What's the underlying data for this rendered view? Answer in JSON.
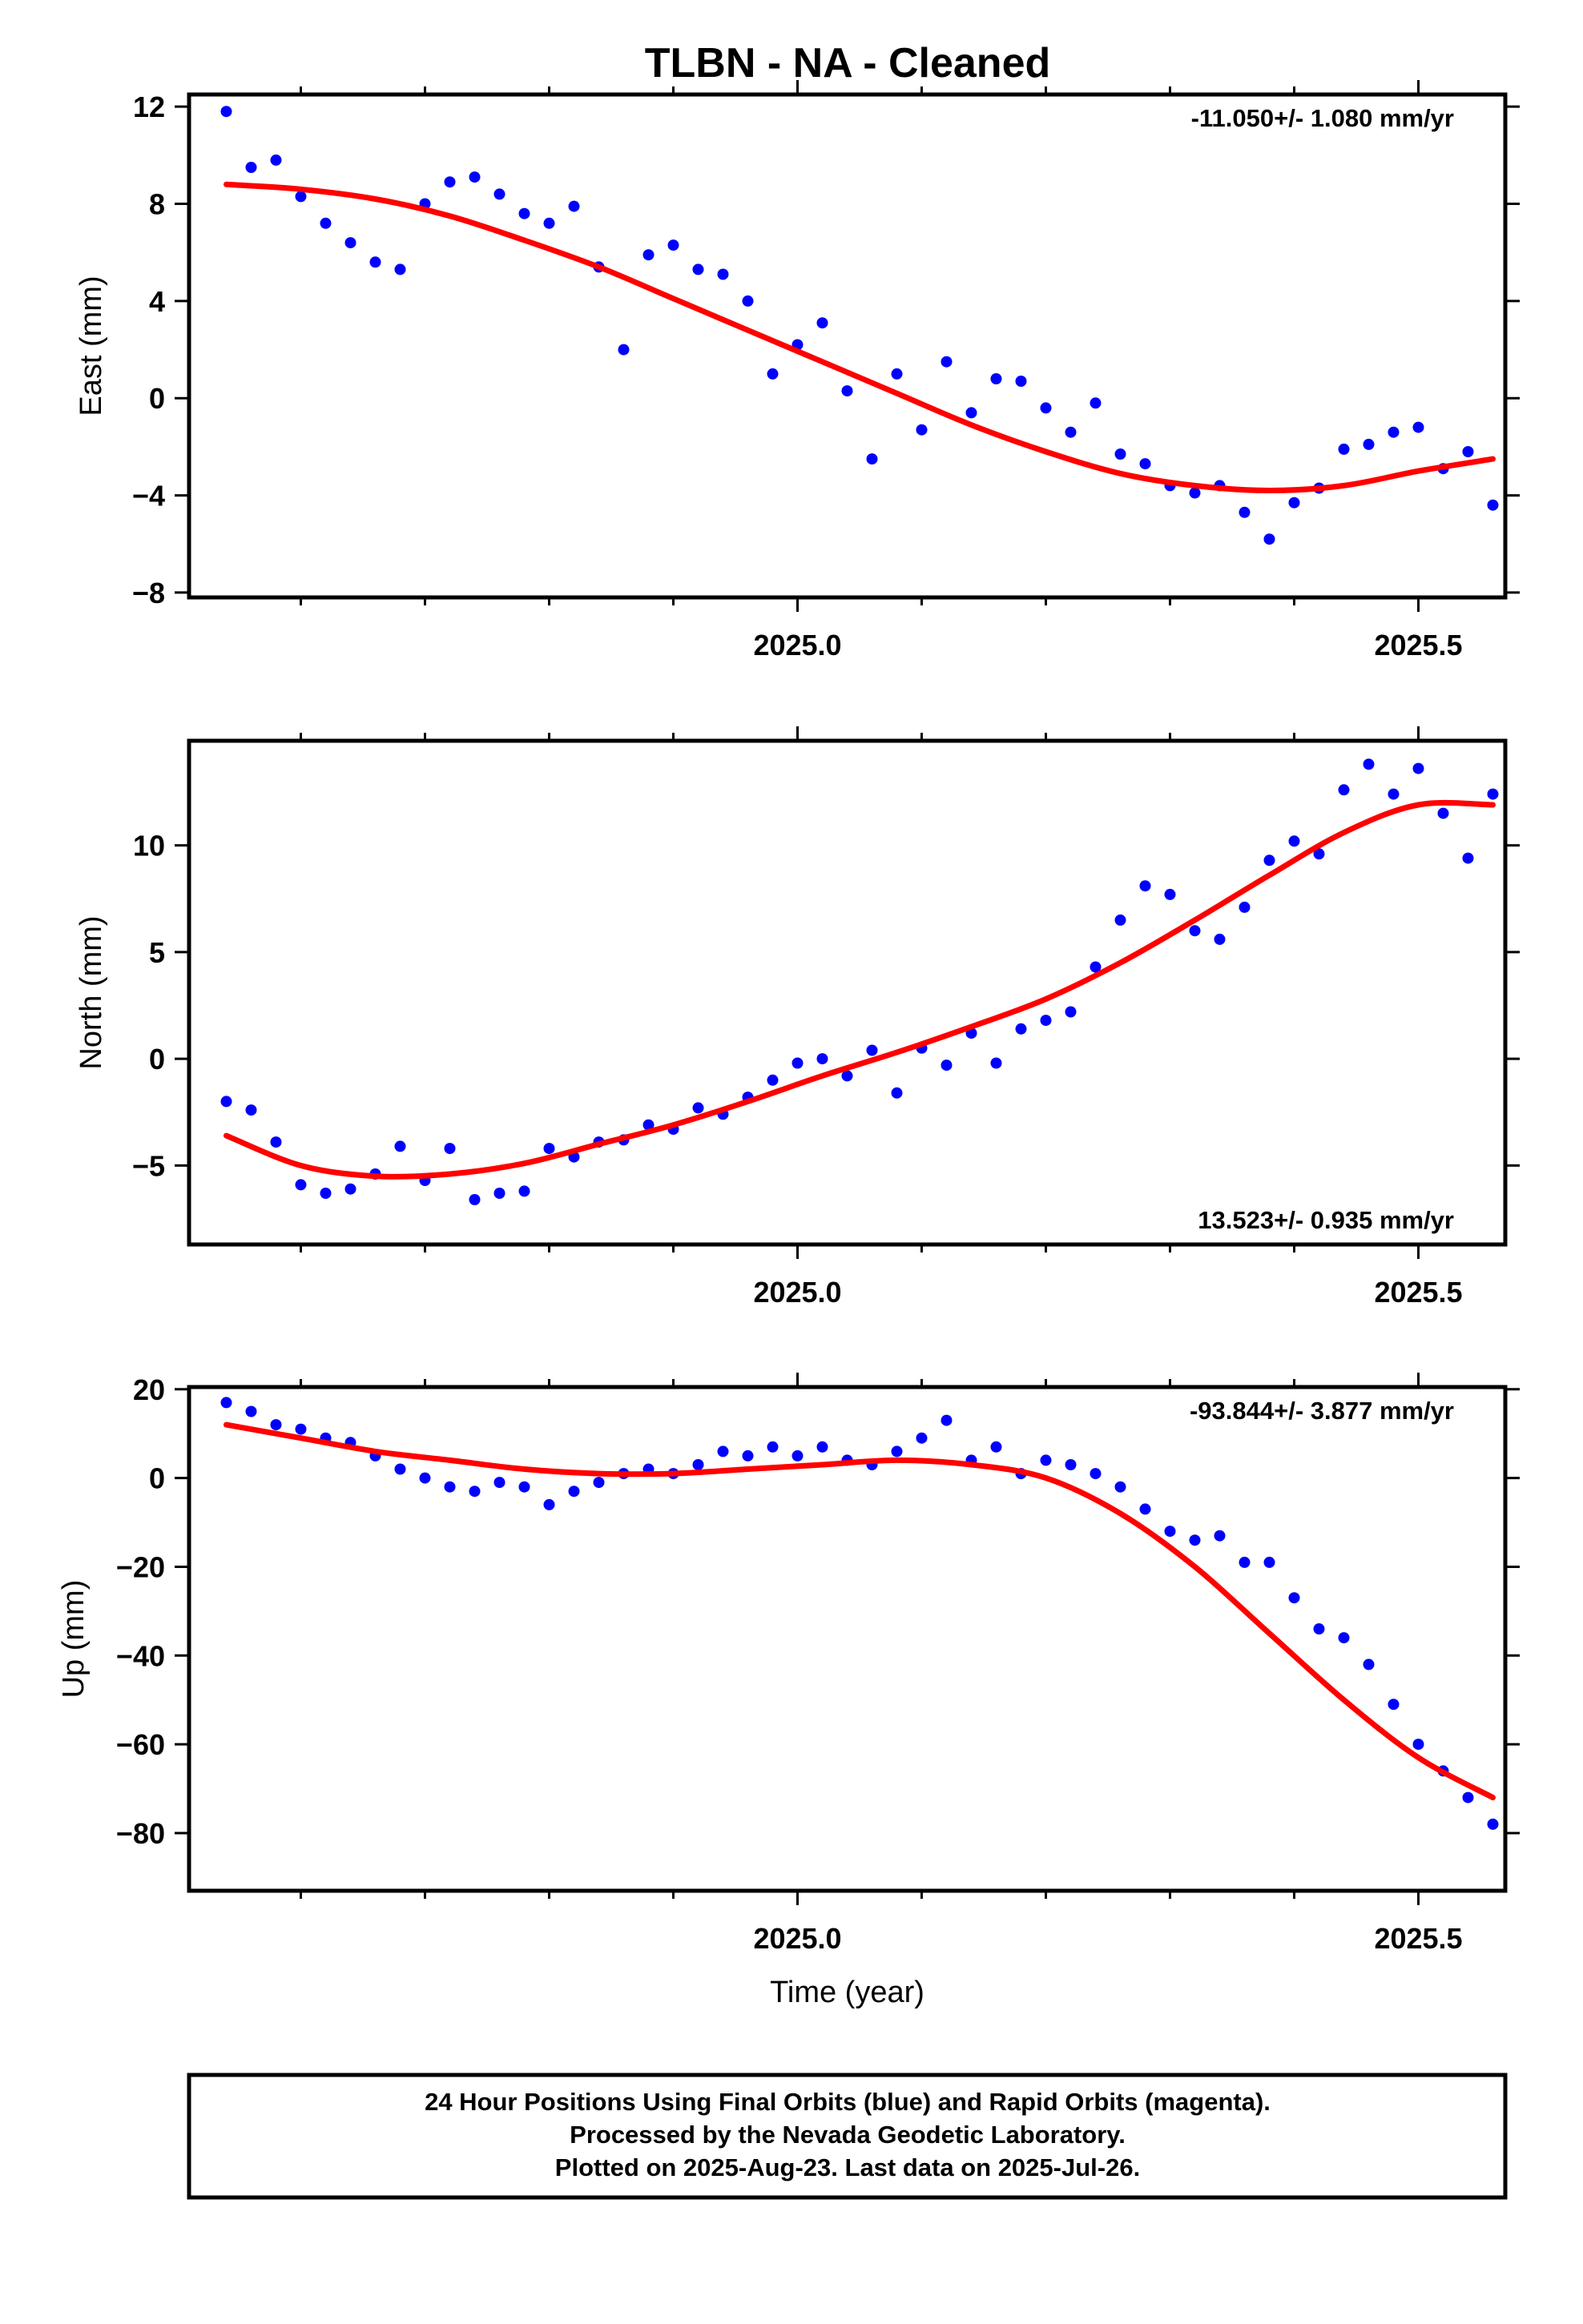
{
  "title": "TLBN  - NA - Cleaned",
  "footer": {
    "lines": [
      "24 Hour Positions Using Final Orbits (blue) and Rapid Orbits (magenta).",
      "Processed by the Nevada Geodetic Laboratory.",
      "Plotted on 2025-Aug-23. Last data on 2025-Jul-26."
    ]
  },
  "colors": {
    "points": "#0000ff",
    "fit": "#ff0000",
    "frame": "#000000"
  },
  "chart_data": [
    {
      "type": "scatter",
      "ylabel": "East (mm)",
      "xlabel": "",
      "xlim": [
        2024.51,
        2025.57
      ],
      "ylim": [
        -8.2,
        12.5
      ],
      "xticks": [
        2025.0,
        2025.5
      ],
      "xticklabels": [
        "2025.0",
        "2025.5"
      ],
      "yticks": [
        -8,
        -4,
        0,
        4,
        8,
        12
      ],
      "yticklabels": [
        "−8",
        "−4",
        "0",
        "4",
        "8",
        "12"
      ],
      "rate_text": "-11.050+/- 1.080 mm/yr",
      "rate_position": "top-right",
      "series": [
        {
          "kind": "points",
          "x": [
            2024.54,
            2024.56,
            2024.58,
            2024.6,
            2024.62,
            2024.64,
            2024.66,
            2024.68,
            2024.7,
            2024.72,
            2024.74,
            2024.76,
            2024.78,
            2024.8,
            2024.82,
            2024.84,
            2024.86,
            2024.88,
            2024.9,
            2024.92,
            2024.94,
            2024.96,
            2024.98,
            2025.0,
            2025.02,
            2025.04,
            2025.06,
            2025.08,
            2025.1,
            2025.12,
            2025.14,
            2025.16,
            2025.18,
            2025.2,
            2025.22,
            2025.24,
            2025.26,
            2025.28,
            2025.3,
            2025.32,
            2025.34,
            2025.36,
            2025.38,
            2025.4,
            2025.42,
            2025.44,
            2025.46,
            2025.48,
            2025.5,
            2025.52,
            2025.54,
            2025.56
          ],
          "y": [
            11.8,
            9.5,
            9.8,
            8.3,
            7.2,
            6.4,
            5.6,
            5.3,
            8.0,
            8.9,
            9.1,
            8.4,
            7.6,
            7.2,
            7.9,
            5.4,
            2.0,
            5.9,
            6.3,
            5.3,
            5.1,
            4.0,
            1.0,
            2.2,
            3.1,
            0.3,
            -2.5,
            1.0,
            -1.3,
            1.5,
            -0.6,
            0.8,
            0.7,
            -0.4,
            -1.4,
            -0.2,
            -2.3,
            -2.7,
            -3.6,
            -3.9,
            -3.6,
            -4.7,
            -5.8,
            -4.3,
            -3.7,
            -2.1,
            -1.9,
            -1.4,
            -1.2,
            -2.9,
            -2.2,
            -4.4
          ]
        },
        {
          "kind": "fit",
          "x": [
            2024.54,
            2024.6,
            2024.66,
            2024.72,
            2024.78,
            2024.84,
            2024.9,
            2024.96,
            2025.02,
            2025.08,
            2025.14,
            2025.2,
            2025.26,
            2025.32,
            2025.38,
            2025.44,
            2025.5,
            2025.56
          ],
          "y": [
            8.8,
            8.6,
            8.2,
            7.5,
            6.5,
            5.4,
            4.1,
            2.8,
            1.5,
            0.2,
            -1.1,
            -2.2,
            -3.1,
            -3.6,
            -3.8,
            -3.6,
            -3.0,
            -2.5
          ]
        }
      ]
    },
    {
      "type": "scatter",
      "ylabel": "North (mm)",
      "xlabel": "",
      "xlim": [
        2024.51,
        2025.57
      ],
      "ylim": [
        -8.7,
        14.9
      ],
      "xticks": [
        2025.0,
        2025.5
      ],
      "xticklabels": [
        "2025.0",
        "2025.5"
      ],
      "yticks": [
        -5,
        0,
        5,
        10
      ],
      "yticklabels": [
        "−5",
        "0",
        "5",
        "10"
      ],
      "rate_text": "13.523+/- 0.935 mm/yr",
      "rate_position": "bottom-right",
      "series": [
        {
          "kind": "points",
          "x": [
            2024.54,
            2024.56,
            2024.58,
            2024.6,
            2024.62,
            2024.64,
            2024.66,
            2024.68,
            2024.7,
            2024.72,
            2024.74,
            2024.76,
            2024.78,
            2024.8,
            2024.82,
            2024.84,
            2024.86,
            2024.88,
            2024.9,
            2024.92,
            2024.94,
            2024.96,
            2024.98,
            2025.0,
            2025.02,
            2025.04,
            2025.06,
            2025.08,
            2025.1,
            2025.12,
            2025.14,
            2025.16,
            2025.18,
            2025.2,
            2025.22,
            2025.24,
            2025.26,
            2025.28,
            2025.3,
            2025.32,
            2025.34,
            2025.36,
            2025.38,
            2025.4,
            2025.42,
            2025.44,
            2025.46,
            2025.48,
            2025.5,
            2025.52,
            2025.54,
            2025.56
          ],
          "y": [
            -2.0,
            -2.4,
            -3.9,
            -5.9,
            -6.3,
            -6.1,
            -5.4,
            -4.1,
            -5.7,
            -4.2,
            -6.6,
            -6.3,
            -6.2,
            -4.2,
            -4.6,
            -3.9,
            -3.8,
            -3.1,
            -3.3,
            -2.3,
            -2.6,
            -1.8,
            -1.0,
            -0.2,
            0.0,
            -0.8,
            0.4,
            -1.6,
            0.5,
            -0.3,
            1.2,
            -0.2,
            1.4,
            1.8,
            2.2,
            4.3,
            6.5,
            8.1,
            7.7,
            6.0,
            5.6,
            7.1,
            9.3,
            10.2,
            9.6,
            12.6,
            13.8,
            12.4,
            13.6,
            11.5,
            9.4,
            12.4
          ]
        },
        {
          "kind": "fit",
          "x": [
            2024.54,
            2024.6,
            2024.66,
            2024.72,
            2024.78,
            2024.84,
            2024.9,
            2024.96,
            2025.02,
            2025.08,
            2025.14,
            2025.2,
            2025.26,
            2025.32,
            2025.38,
            2025.44,
            2025.5,
            2025.56
          ],
          "y": [
            -3.6,
            -5.0,
            -5.5,
            -5.4,
            -4.9,
            -4.0,
            -3.1,
            -2.0,
            -0.8,
            0.3,
            1.5,
            2.8,
            4.5,
            6.5,
            8.6,
            10.6,
            11.9,
            11.9
          ]
        }
      ]
    },
    {
      "type": "scatter",
      "ylabel": "Up (mm)",
      "xlabel": "Time (year)",
      "xlim": [
        2024.51,
        2025.57
      ],
      "ylim": [
        -93.0,
        20.5
      ],
      "xticks": [
        2025.0,
        2025.5
      ],
      "xticklabels": [
        "2025.0",
        "2025.5"
      ],
      "yticks": [
        -80,
        -60,
        -40,
        -20,
        0,
        20
      ],
      "yticklabels": [
        "−80",
        "−60",
        "−40",
        "−20",
        "0",
        "20"
      ],
      "rate_text": "-93.844+/- 3.877 mm/yr",
      "rate_position": "top-right",
      "series": [
        {
          "kind": "points",
          "x": [
            2024.54,
            2024.56,
            2024.58,
            2024.6,
            2024.62,
            2024.64,
            2024.66,
            2024.68,
            2024.7,
            2024.72,
            2024.74,
            2024.76,
            2024.78,
            2024.8,
            2024.82,
            2024.84,
            2024.86,
            2024.88,
            2024.9,
            2024.92,
            2024.94,
            2024.96,
            2024.98,
            2025.0,
            2025.02,
            2025.04,
            2025.06,
            2025.08,
            2025.1,
            2025.12,
            2025.14,
            2025.16,
            2025.18,
            2025.2,
            2025.22,
            2025.24,
            2025.26,
            2025.28,
            2025.3,
            2025.32,
            2025.34,
            2025.36,
            2025.38,
            2025.4,
            2025.42,
            2025.44,
            2025.46,
            2025.48,
            2025.5,
            2025.52,
            2025.54,
            2025.56
          ],
          "y": [
            17,
            15,
            12,
            11,
            9,
            8,
            5,
            2,
            0,
            -2,
            -3,
            -1,
            -2,
            -6,
            -3,
            -1,
            1,
            2,
            1,
            3,
            6,
            5,
            7,
            5,
            7,
            4,
            3,
            6,
            9,
            13,
            4,
            7,
            1,
            4,
            3,
            1,
            -2,
            -7,
            -12,
            -14,
            -13,
            -19,
            -19,
            -27,
            -34,
            -36,
            -42,
            -51,
            -60,
            -66,
            -72,
            -78
          ]
        },
        {
          "kind": "fit",
          "x": [
            2024.54,
            2024.6,
            2024.66,
            2024.72,
            2024.78,
            2024.84,
            2024.9,
            2024.96,
            2025.02,
            2025.08,
            2025.14,
            2025.2,
            2025.26,
            2025.32,
            2025.38,
            2025.44,
            2025.5,
            2025.56
          ],
          "y": [
            12,
            9,
            6,
            4,
            2,
            1,
            1,
            2,
            3,
            4,
            3,
            0,
            -8,
            -20,
            -35,
            -50,
            -63,
            -72
          ]
        }
      ]
    }
  ]
}
